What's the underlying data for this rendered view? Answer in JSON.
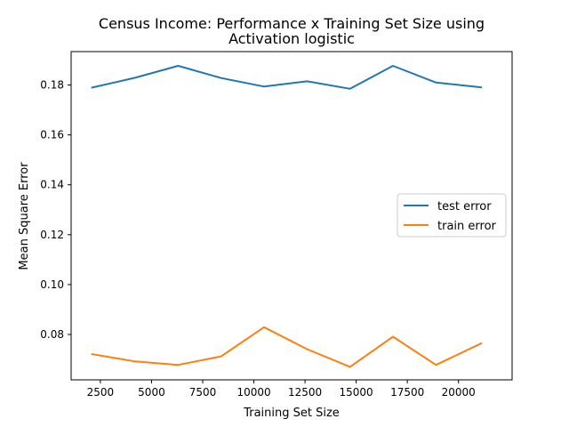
{
  "chart_data": {
    "type": "line",
    "title_line1": "Census Income: Performance x Training Set Size using",
    "title_line2": "Activation logistic",
    "xlabel": "Training Set Size",
    "ylabel": "Mean Square Error",
    "xlim": [
      1070,
      22620
    ],
    "ylim": [
      0.0618,
      0.1934
    ],
    "xticks": [
      2500,
      5000,
      7500,
      10000,
      12500,
      15000,
      17500,
      20000
    ],
    "xtick_labels": [
      "2500",
      "5000",
      "7500",
      "10000",
      "12500",
      "15000",
      "17500",
      "20000"
    ],
    "yticks": [
      0.08,
      0.1,
      0.12,
      0.14,
      0.16,
      0.18
    ],
    "ytick_labels": [
      "0.08",
      "0.10",
      "0.12",
      "0.14",
      "0.16",
      "0.18"
    ],
    "grid": false,
    "legend_position": "center-right",
    "x": [
      2100,
      4200,
      6300,
      8400,
      10500,
      12600,
      14700,
      16800,
      18900,
      21100
    ],
    "series": [
      {
        "name": "test error",
        "color": "#1f77b4",
        "values": [
          0.179,
          0.1829,
          0.1877,
          0.1828,
          0.1794,
          0.1815,
          0.1785,
          0.1877,
          0.181,
          0.1791
        ]
      },
      {
        "name": "train error",
        "color": "#ff7f0e",
        "values": [
          0.0721,
          0.0692,
          0.0678,
          0.0712,
          0.0829,
          0.0741,
          0.067,
          0.0791,
          0.0678,
          0.0764
        ]
      }
    ]
  }
}
